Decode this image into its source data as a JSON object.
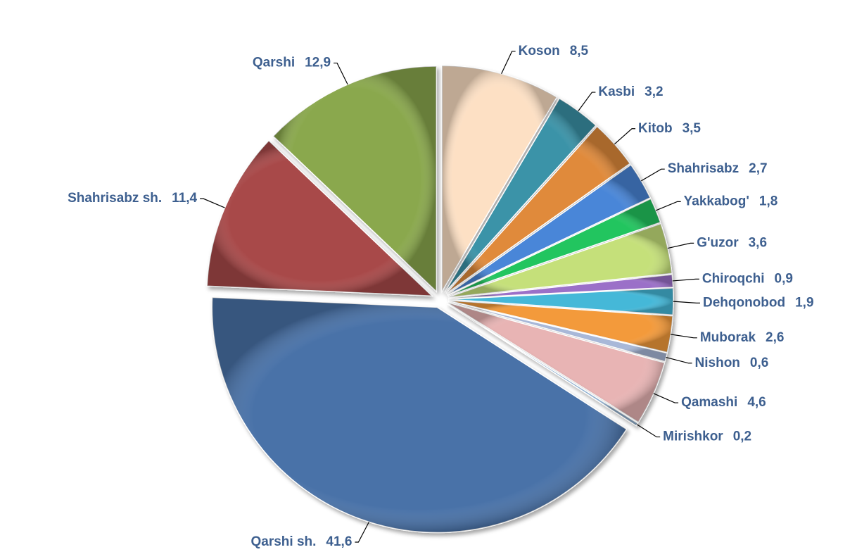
{
  "chart_data": {
    "type": "pie",
    "categories": [
      "Koson",
      "Kasbi",
      "Kitob",
      "Shahrisabz",
      "Yakkabog'",
      "G'uzor",
      "Chiroqchi",
      "Dehqonobod",
      "Muborak",
      "Nishon",
      "Qamashi",
      "Mirishkor",
      "Qarshi sh.",
      "Shahrisabz sh.",
      "Qarshi"
    ],
    "values": [
      8.5,
      3.2,
      3.5,
      2.7,
      1.8,
      3.6,
      0.9,
      1.9,
      2.6,
      0.6,
      4.6,
      0.2,
      41.6,
      11.4,
      12.9
    ],
    "value_labels": [
      "8,5",
      "3,2",
      "3,5",
      "2,7",
      "1,8",
      "3,6",
      "0,9",
      "1,9",
      "2,6",
      "0,6",
      "4,6",
      "0,2",
      "41,6",
      "11,4",
      "12,9"
    ],
    "colors": [
      "#fde0c4",
      "#3a93a8",
      "#e08a3a",
      "#4a86d8",
      "#22c55e",
      "#c5e07a",
      "#9b6fc8",
      "#44b8d8",
      "#f39a3a",
      "#a8b8d8",
      "#e8b4b4",
      "#8fb0d0",
      "#4a72a8",
      "#a84a48",
      "#8aa84e"
    ]
  }
}
